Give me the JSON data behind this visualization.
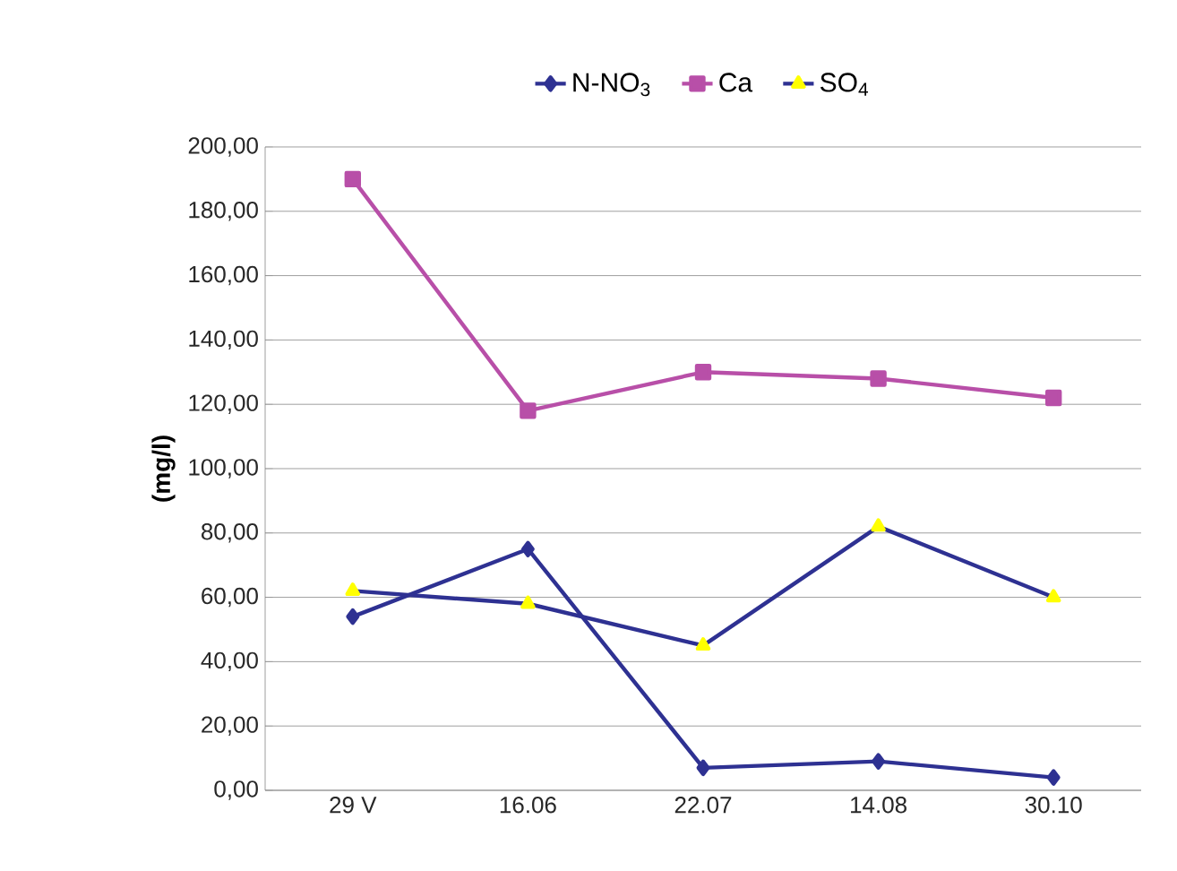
{
  "chart_data": {
    "type": "line",
    "ylabel": "(mg/l)",
    "categories": [
      "29 V",
      "16.06",
      "22.07",
      "14.08",
      "30.10"
    ],
    "series": [
      {
        "name": "N-NO$_{3}$",
        "color": "#2e3192",
        "marker": "diamond",
        "values": [
          54,
          75,
          7,
          9,
          4
        ]
      },
      {
        "name": "Ca",
        "color": "#b84fa8",
        "marker": "square",
        "values": [
          190,
          118,
          130,
          128,
          122
        ]
      },
      {
        "name": "SO$_{4}$",
        "color": "#2e3192",
        "marker": "triangle",
        "colors": [
          "#ffff00",
          "#ffff00",
          "#ffff00",
          "#ffff00",
          "#ffff00"
        ],
        "values": [
          62,
          58,
          45,
          82,
          60
        ]
      }
    ],
    "ylim": [
      0,
      200
    ],
    "yticks": [
      {
        "value": 0,
        "label": "0,00"
      },
      {
        "value": 20,
        "label": "20,00"
      },
      {
        "value": 40,
        "label": "40,00"
      },
      {
        "value": 60,
        "label": "60,00"
      },
      {
        "value": 80,
        "label": "80,00"
      },
      {
        "value": 100,
        "label": "100,00"
      },
      {
        "value": 120,
        "label": "120,00"
      },
      {
        "value": 140,
        "label": "140,00"
      },
      {
        "value": 160,
        "label": "160,00"
      },
      {
        "value": 180,
        "label": "180,00"
      },
      {
        "value": 200,
        "label": "200,00"
      }
    ],
    "grid": "y",
    "legend": "top"
  }
}
